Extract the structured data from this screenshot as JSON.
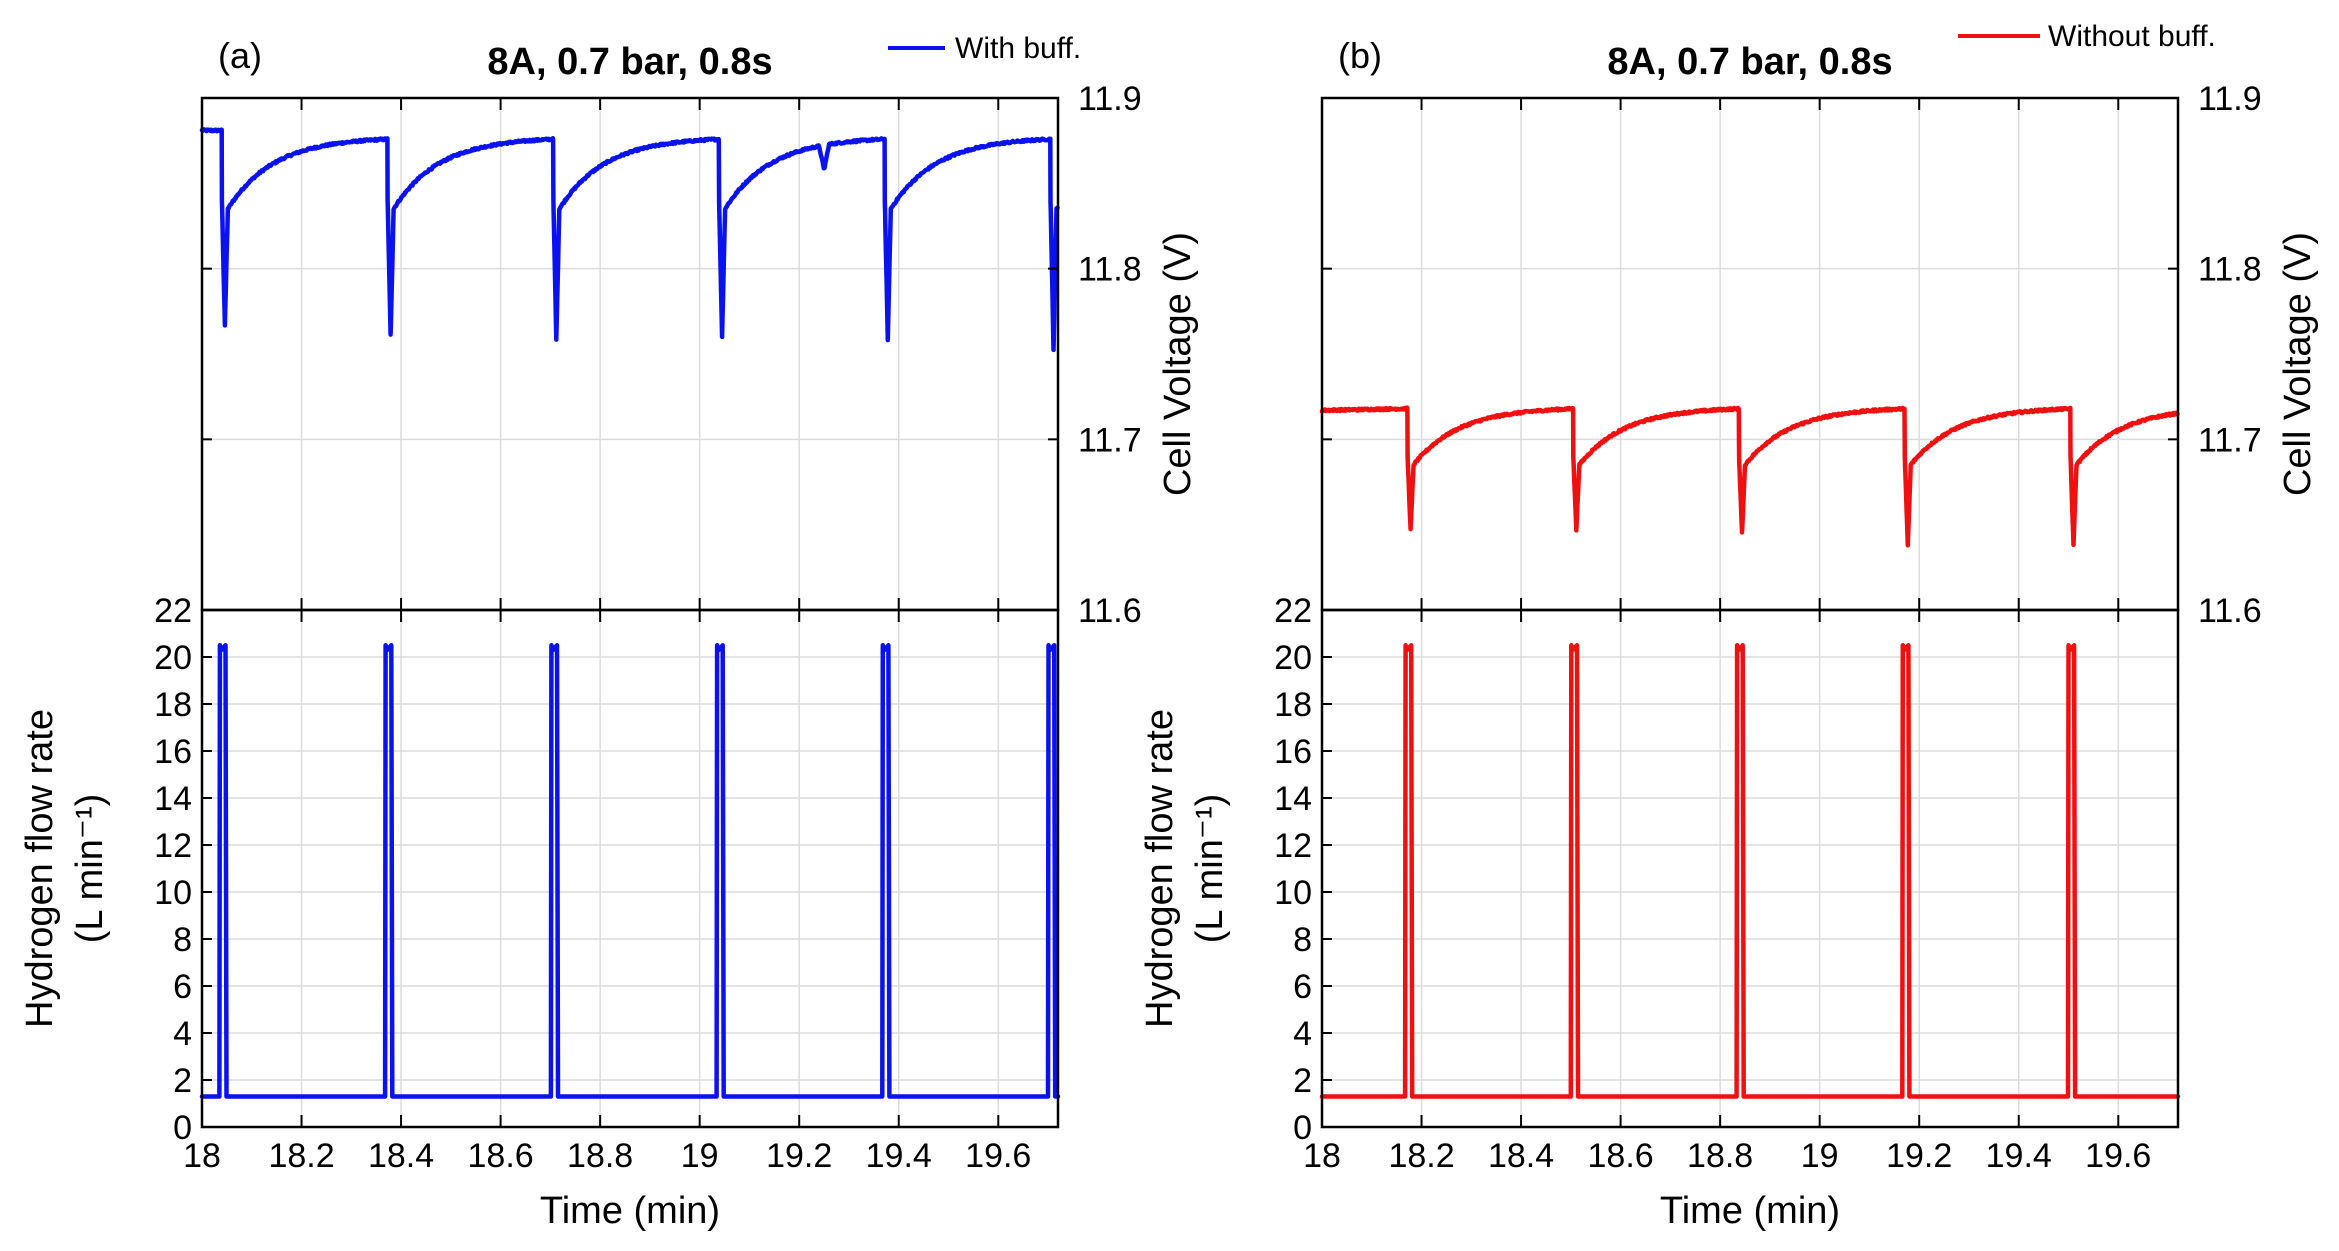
{
  "colors": {
    "with_buff": "#0a12f0",
    "without_buff": "#f01010"
  },
  "chart_data": [
    {
      "type": "line",
      "panel": "(a)",
      "title": "8A, 0.7 bar, 0.8s",
      "legend": "With buff.",
      "xlabel": "Time (min)",
      "xlim": [
        18,
        19.72
      ],
      "xticks": [
        18,
        18.2,
        18.4,
        18.6,
        18.8,
        19,
        19.2,
        19.4,
        19.6
      ],
      "xtick_labels": [
        "18",
        "18.2",
        "18.4",
        "18.6",
        "18.8",
        "19",
        "19.2",
        "19.4",
        "19.6"
      ],
      "top": {
        "ylabel": "Cell Voltage (V)",
        "ylim": [
          11.6,
          11.9
        ],
        "yticks": [
          11.6,
          11.7,
          11.8,
          11.9
        ],
        "ytick_labels": [
          "11.6",
          "11.7",
          "11.8",
          "11.9"
        ],
        "purge_times": [
          18.04,
          18.373,
          18.706,
          19.039,
          19.372,
          19.705
        ],
        "purge_min": [
          11.767,
          11.761,
          11.759,
          11.76,
          11.758,
          11.753
        ],
        "recovery_start": 11.835,
        "recovery_end": 11.876,
        "initial_level": 11.881,
        "dip_time": 19.25,
        "dip_value": 11.86
      },
      "bottom": {
        "ylabel_line1": "Hydrogen flow rate",
        "ylabel_line2": "(L min⁻¹)",
        "ylim": [
          0,
          22
        ],
        "yticks": [
          0,
          2,
          4,
          6,
          8,
          10,
          12,
          14,
          16,
          18,
          20,
          22
        ],
        "ytick_labels": [
          "0",
          "2",
          "4",
          "6",
          "8",
          "10",
          "12",
          "14",
          "16",
          "18",
          "20",
          "22"
        ],
        "baseline": 1.3,
        "peak": 20.5,
        "purge_starts": [
          18.036,
          18.369,
          18.702,
          19.035,
          19.368,
          19.701
        ],
        "purge_duration": 0.0133
      }
    },
    {
      "type": "line",
      "panel": "(b)",
      "title": "8A, 0.7 bar, 0.8s",
      "legend": "Without buff.",
      "xlabel": "Time (min)",
      "xlim": [
        18,
        19.72
      ],
      "xticks": [
        18,
        18.2,
        18.4,
        18.6,
        18.8,
        19,
        19.2,
        19.4,
        19.6
      ],
      "xtick_labels": [
        "18",
        "18.2",
        "18.4",
        "18.6",
        "18.8",
        "19",
        "19.2",
        "19.4",
        "19.6"
      ],
      "top": {
        "ylabel": "Cell Voltage (V)",
        "ylim": [
          11.6,
          11.9
        ],
        "yticks": [
          11.6,
          11.7,
          11.8,
          11.9
        ],
        "ytick_labels": [
          "11.6",
          "11.7",
          "11.8",
          "11.9"
        ],
        "purge_times": [
          18.172,
          18.505,
          18.838,
          19.171,
          19.504
        ],
        "purge_min": [
          11.647,
          11.647,
          11.645,
          11.638,
          11.638
        ],
        "recovery_start": 11.685,
        "recovery_end": 11.718,
        "initial_level": 11.718,
        "start_value": 11.717,
        "end_value": 11.707
      },
      "bottom": {
        "ylabel_line1": "Hydrogen flow rate",
        "ylabel_line2": "(L min⁻¹)",
        "ylim": [
          0,
          22
        ],
        "yticks": [
          0,
          2,
          4,
          6,
          8,
          10,
          12,
          14,
          16,
          18,
          20,
          22
        ],
        "ytick_labels": [
          "0",
          "2",
          "4",
          "6",
          "8",
          "10",
          "12",
          "14",
          "16",
          "18",
          "20",
          "22"
        ],
        "baseline": 1.3,
        "peak": 20.5,
        "purge_starts": [
          18.168,
          18.501,
          18.834,
          19.167,
          19.5
        ],
        "purge_duration": 0.0133
      }
    }
  ]
}
